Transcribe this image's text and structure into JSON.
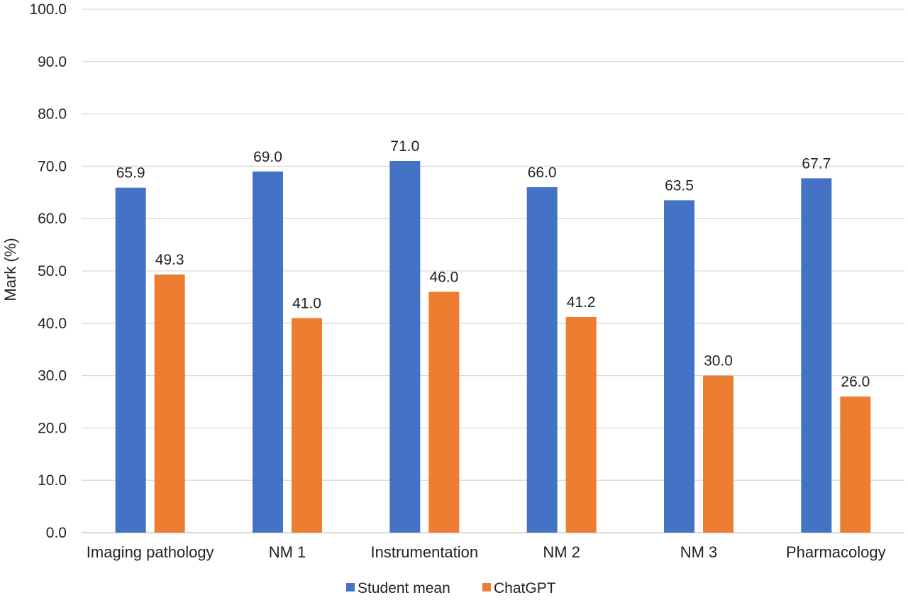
{
  "chart_data": {
    "type": "bar",
    "title": "",
    "xlabel": "",
    "ylabel": "Mark (%)",
    "ylim": [
      0,
      100
    ],
    "y_ticks": [
      "0.0",
      "10.0",
      "20.0",
      "30.0",
      "40.0",
      "50.0",
      "60.0",
      "70.0",
      "80.0",
      "90.0",
      "100.0"
    ],
    "grid": true,
    "legend_position": "bottom",
    "categories": [
      "Imaging pathology",
      "NM 1",
      "Instrumentation",
      "NM 2",
      "NM 3",
      "Pharmacology"
    ],
    "series": [
      {
        "name": "Student mean",
        "color": "#4472C4",
        "values": [
          65.9,
          69.0,
          71.0,
          66.0,
          63.5,
          67.7
        ],
        "labels": [
          "65.9",
          "69.0",
          "71.0",
          "66.0",
          "63.5",
          "67.7"
        ]
      },
      {
        "name": "ChatGPT",
        "color": "#ED7D31",
        "values": [
          49.3,
          41.0,
          46.0,
          41.2,
          30.0,
          26.0
        ],
        "labels": [
          "49.3",
          "41.0",
          "46.0",
          "41.2",
          "30.0",
          "26.0"
        ]
      }
    ]
  }
}
